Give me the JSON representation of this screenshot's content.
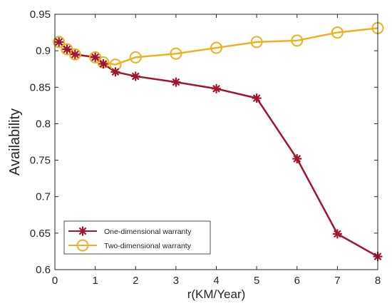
{
  "chart_data": {
    "type": "line",
    "title": "",
    "xlabel": "r(KM/Year)",
    "ylabel": "Availability",
    "xlim": [
      0,
      8
    ],
    "ylim": [
      0.6,
      0.95
    ],
    "x_ticks": [
      0,
      1,
      2,
      3,
      4,
      5,
      6,
      7,
      8
    ],
    "x_tick_labels": [
      "0",
      "1",
      "2",
      "3",
      "4",
      "5",
      "6",
      "7",
      "8"
    ],
    "y_ticks": [
      0.6,
      0.65,
      0.7,
      0.75,
      0.8,
      0.85,
      0.9,
      0.95
    ],
    "y_tick_labels": [
      "0.6",
      "0.65",
      "0.7",
      "0.75",
      "0.8",
      "0.85",
      "0.9",
      "0.95"
    ],
    "grid": false,
    "legend_position": "bottom-left",
    "series": [
      {
        "name": "One-dimensional warranty",
        "color": "#A2142F",
        "marker": "asterisk",
        "x": [
          0.1,
          0.3,
          0.5,
          1.0,
          1.2,
          1.5,
          2,
          3,
          4,
          5,
          6,
          7,
          8
        ],
        "y": [
          0.912,
          0.902,
          0.895,
          0.891,
          0.882,
          0.871,
          0.865,
          0.857,
          0.848,
          0.835,
          0.752,
          0.649,
          0.618
        ]
      },
      {
        "name": "Two-dimensional warranty",
        "color": "#EDB120",
        "marker": "circle",
        "x": [
          0.1,
          0.3,
          0.5,
          1.0,
          1.2,
          1.5,
          2,
          3,
          4,
          5,
          6,
          7,
          8
        ],
        "y": [
          0.912,
          0.902,
          0.895,
          0.891,
          0.884,
          0.881,
          0.891,
          0.896,
          0.904,
          0.912,
          0.914,
          0.925,
          0.931
        ]
      }
    ]
  }
}
